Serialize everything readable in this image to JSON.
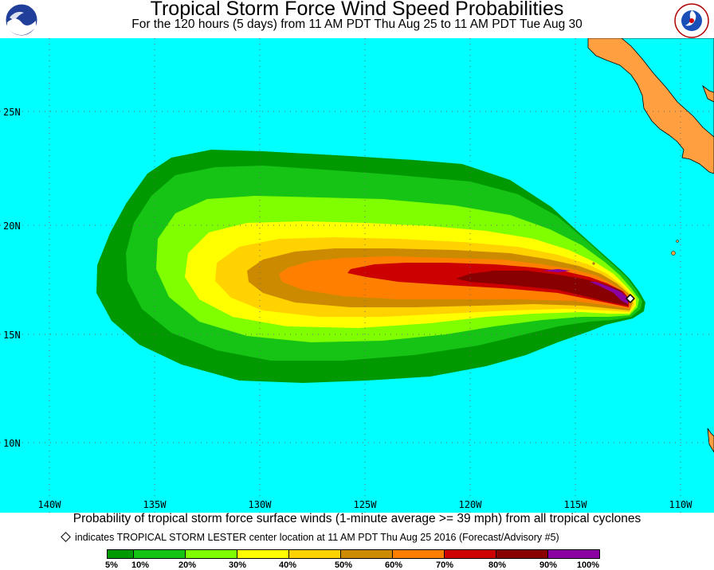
{
  "header": {
    "title": "Tropical Storm Force Wind Speed Probabilities",
    "subtitle": "For the 120 hours (5 days) from 11 AM PDT Thu Aug 25 to 11 AM PDT Tue Aug 30",
    "left_logo_text": "NOAA",
    "right_logo_text": "NATIONAL WEATHER SERVICE"
  },
  "map": {
    "lat_labels": [
      "25N",
      "20N",
      "15N",
      "10N"
    ],
    "lon_labels": [
      "140W",
      "135W",
      "130W",
      "125W",
      "120W",
      "115W",
      "110W"
    ],
    "colors": {
      "ocean": "#00ffff",
      "land": "#ff9f40",
      "grid": "#6a6a6a"
    },
    "storm_marker": {
      "name": "TROPICAL STORM LESTER",
      "lat": 16.8,
      "lon": -112.6
    }
  },
  "footer": {
    "description": "Probability of tropical storm force surface winds (1-minute average >= 39 mph) from all tropical cyclones",
    "marker_note": "indicates TROPICAL STORM LESTER center location at 11 AM PDT Thu Aug 25 2016 (Forecast/Advisory #5)"
  },
  "legend": {
    "labels": [
      "5%",
      "10%",
      "20%",
      "30%",
      "40%",
      "50%",
      "60%",
      "70%",
      "80%",
      "90%",
      "100%"
    ],
    "colors": [
      "#009a00",
      "#16c416",
      "#80ff00",
      "#ffff00",
      "#ffd200",
      "#cc8a00",
      "#ff8000",
      "#cc0000",
      "#880000",
      "#8b00a0"
    ]
  }
}
